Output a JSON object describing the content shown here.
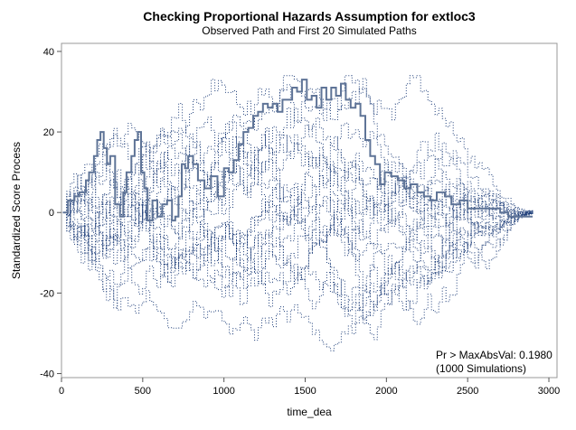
{
  "chart_data": {
    "type": "line",
    "title": "Checking Proportional Hazards Assumption for extloc3",
    "subtitle": "Observed Path and First 20 Simulated Paths",
    "xlabel": "time_dea",
    "ylabel": "Standardized Score Process",
    "xlim": [
      0,
      3050
    ],
    "ylim": [
      -41,
      42
    ],
    "xticks": [
      "0",
      "500",
      "1000",
      "1500",
      "2000",
      "2500",
      "3000"
    ],
    "yticks": [
      "40",
      "20",
      "0",
      "-20",
      "-40"
    ],
    "grid": false,
    "legend": "none",
    "inset": {
      "line1": "Pr > MaxAbsVal: 0.1980",
      "line2": "(1000 Simulations)"
    },
    "colors": {
      "observed": "#5f7497",
      "simulated": "#1f3f7a"
    },
    "observed": {
      "x": [
        10,
        40,
        80,
        110,
        130,
        150,
        170,
        200,
        220,
        240,
        260,
        280,
        300,
        330,
        360,
        380,
        400,
        430,
        450,
        470,
        490,
        510,
        530,
        560,
        590,
        620,
        650,
        680,
        700,
        720,
        740,
        760,
        780,
        810,
        840,
        880,
        920,
        960,
        1000,
        1030,
        1060,
        1090,
        1120,
        1150,
        1180,
        1210,
        1240,
        1270,
        1300,
        1330,
        1360,
        1390,
        1420,
        1450,
        1480,
        1510,
        1540,
        1570,
        1600,
        1630,
        1660,
        1690,
        1720,
        1750,
        1780,
        1810,
        1840,
        1870,
        1900,
        1930,
        1960,
        1990,
        2030,
        2070,
        2110,
        2150,
        2190,
        2230,
        2270,
        2310,
        2360,
        2400,
        2450,
        2500,
        2550,
        2600,
        2650,
        2700,
        2750,
        2800,
        2850,
        2900
      ],
      "y": [
        0,
        3,
        4,
        5,
        5,
        8,
        10,
        14,
        18,
        20,
        16,
        12,
        14,
        2,
        -1,
        5,
        10,
        14,
        18,
        20,
        10,
        6,
        -2,
        3,
        -1,
        2,
        3,
        -2,
        -1,
        4,
        12,
        11,
        14,
        12,
        8,
        6,
        9,
        4,
        11,
        10,
        13,
        17,
        20,
        21,
        24,
        25,
        27,
        26,
        27,
        25,
        28,
        28,
        31,
        30,
        33,
        28,
        29,
        26,
        31,
        28,
        31,
        29,
        32,
        28,
        26,
        27,
        24,
        18,
        14,
        12,
        7,
        10,
        9,
        8,
        6,
        7,
        5,
        4,
        3,
        5,
        4,
        2,
        3,
        1,
        1,
        1,
        1,
        0,
        -1,
        -1,
        -1,
        -1
      ]
    },
    "simulated_series_count": 20
  }
}
